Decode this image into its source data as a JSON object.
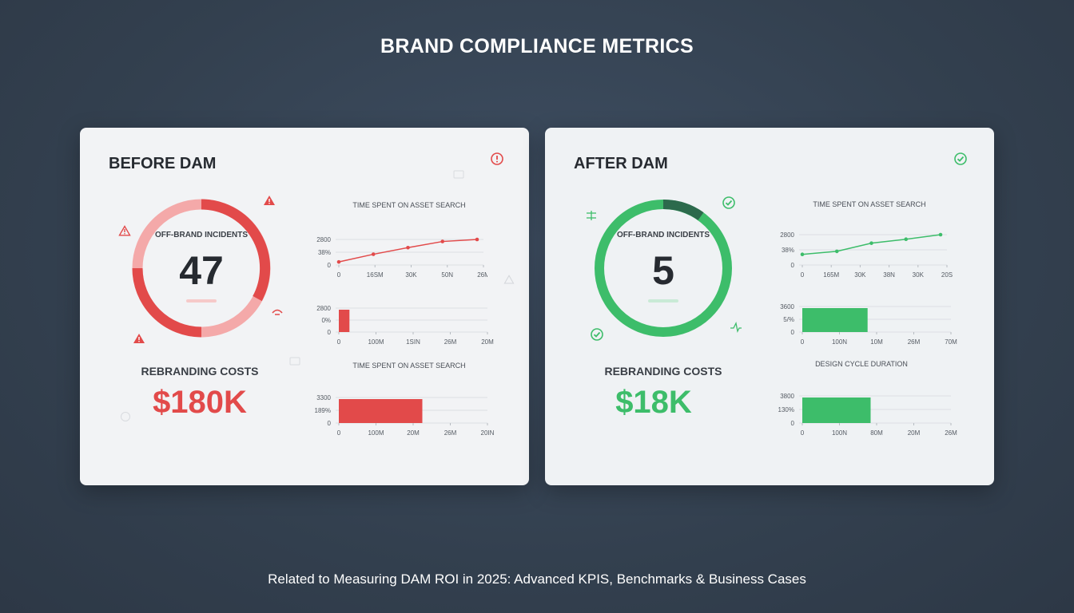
{
  "title": "BRAND COMPLIANCE METRICS",
  "footer": "Related to Measuring DAM ROI in 2025: Advanced KPIS, Benchmarks & Business Cases",
  "colors": {
    "bad": "#e24a4a",
    "bad_light": "#f2aaaa",
    "good": "#3dbd6a",
    "good_dark": "#2c6a4c"
  },
  "before": {
    "title": "BEFORE DAM",
    "gauge_label": "OFF-BRAND INCIDENTS",
    "gauge_value": "47",
    "cost_label": "REBRANDING COSTS",
    "cost_value": "$180K",
    "charts": {
      "line_title": "TIME SPENT ON ASSET SEARCH",
      "bar_title": "TIME SPENT ON ASSET SEARCH"
    }
  },
  "after": {
    "title": "AFTER DAM",
    "gauge_label": "OFF-BRAND INCIDENTS",
    "gauge_value": "5",
    "cost_label": "REBRANDING COSTS",
    "cost_value": "$18K",
    "charts": {
      "line_title": "TIME SPENT ON ASSET SEARCH",
      "bar_title": "DESIGN CYCLE DURATION"
    }
  },
  "chart_data": [
    {
      "panel": "before",
      "type": "line",
      "title": "TIME SPENT ON ASSET SEARCH",
      "yticks": [
        "2800",
        "38%",
        "0"
      ],
      "xticks": [
        "0",
        "16SM",
        "30K",
        "50N",
        "26M"
      ],
      "values": [
        0.12,
        0.42,
        0.68,
        0.92,
        1.0
      ]
    },
    {
      "panel": "before",
      "type": "bar",
      "title": "",
      "yticks": [
        "2800",
        "0%",
        "0"
      ],
      "xticks": [
        "0",
        "100M",
        "1SIN",
        "26M",
        "20M"
      ],
      "value": 0.07
    },
    {
      "panel": "before",
      "type": "bar",
      "title": "TIME SPENT ON ASSET SEARCH",
      "yticks": [
        "3300",
        "189%",
        "0"
      ],
      "xticks": [
        "0",
        "100M",
        "20M",
        "26M",
        "20IN"
      ],
      "value": 0.55
    },
    {
      "panel": "after",
      "type": "line",
      "title": "TIME SPENT ON ASSET SEARCH",
      "yticks": [
        "2800",
        "38%",
        "0"
      ],
      "xticks": [
        "0",
        "165M",
        "30K",
        "38N",
        "30K",
        "20S"
      ],
      "values": [
        0.35,
        0.45,
        0.72,
        0.85,
        1.0
      ]
    },
    {
      "panel": "after",
      "type": "bar",
      "title": "",
      "yticks": [
        "3600",
        "5/%",
        "0"
      ],
      "xticks": [
        "0",
        "100N",
        "10M",
        "26M",
        "70M"
      ],
      "value": 0.43
    },
    {
      "panel": "after",
      "type": "bar",
      "title": "DESIGN CYCLE DURATION",
      "yticks": [
        "3800",
        "130%",
        "0"
      ],
      "xticks": [
        "0",
        "100N",
        "80M",
        "20M",
        "26M"
      ],
      "value": 0.45
    }
  ]
}
